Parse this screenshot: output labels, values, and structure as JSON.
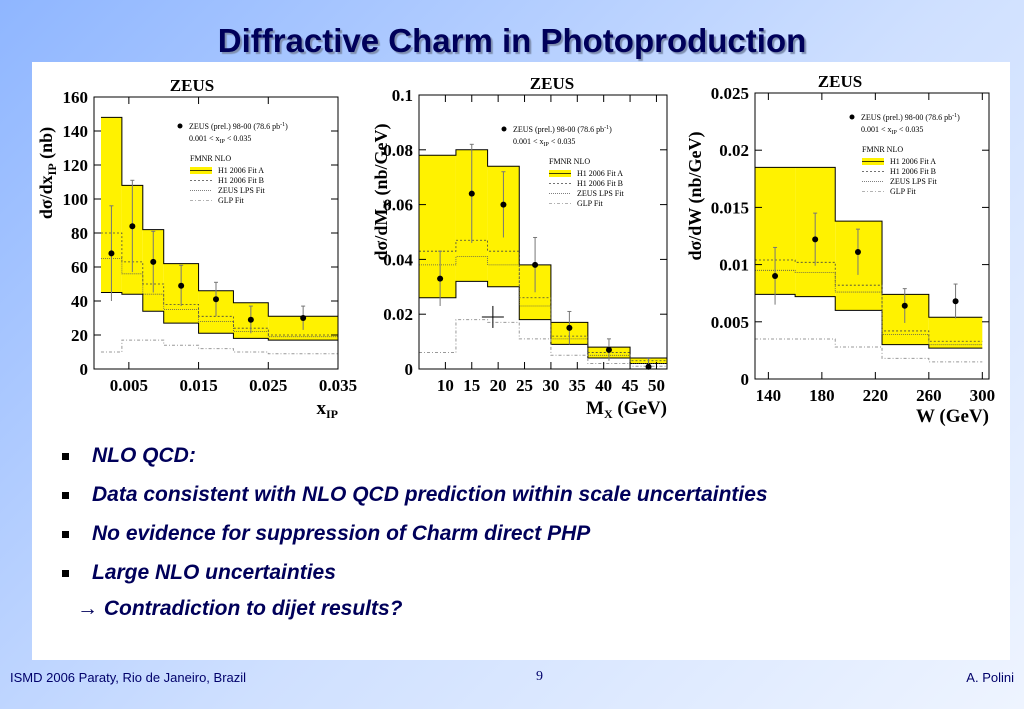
{
  "title": "Diffractive Charm in Photoproduction",
  "chart_data": [
    {
      "type": "line",
      "experiment": "ZEUS",
      "xlabel_main": "x",
      "xlabel_sub": "IP",
      "ylabel_main": "dσ/dx",
      "ylabel_sub": "IP",
      "ylabel_unit": "(nb)",
      "xlim": [
        0,
        0.035
      ],
      "ylim": [
        0,
        160
      ],
      "xticks": [
        "0.005",
        "0.015",
        "0.025",
        "0.035"
      ],
      "xtick_values": [
        0.005,
        0.015,
        0.025,
        0.035
      ],
      "yticks": [
        "0",
        "20",
        "40",
        "60",
        "80",
        "100",
        "120",
        "140",
        "160"
      ],
      "ytick_values": [
        0,
        20,
        40,
        60,
        80,
        100,
        120,
        140,
        160
      ],
      "bin_edges": [
        0.001,
        0.004,
        0.007,
        0.01,
        0.015,
        0.02,
        0.025,
        0.035
      ],
      "data_points": {
        "x": [
          0.0025,
          0.0055,
          0.0085,
          0.0125,
          0.0175,
          0.0225,
          0.03
        ],
        "y": [
          68,
          84,
          63,
          49,
          41,
          29,
          30
        ],
        "err": [
          28,
          27,
          18,
          12,
          10,
          8,
          7
        ]
      },
      "band_a_low": [
        45,
        44,
        34,
        27,
        21,
        18,
        17
      ],
      "band_a_high": [
        148,
        108,
        82,
        62,
        46,
        39,
        31
      ],
      "fit_b": [
        80,
        63,
        50,
        38,
        31,
        24,
        20
      ],
      "zeus_lps": [
        65,
        56,
        44,
        35,
        28,
        22,
        19
      ],
      "glp": [
        10,
        17,
        17,
        14,
        12,
        10,
        9
      ],
      "legend_data": "ZEUS  (prel.)  98-00  (78.6 pb",
      "legend_data_sup": "-1",
      "legend_data_close": ")",
      "legend_cut_a": "0.001 < x",
      "legend_cut_sub": "IP",
      "legend_cut_b": " < 0.035",
      "legend_header": "FMNR NLO",
      "legend_entries": [
        "H1 2006 Fit A",
        "H1 2006 Fit B",
        "ZEUS LPS Fit",
        "GLP Fit"
      ],
      "colors": {
        "band": "#fff200",
        "data": "#000000"
      }
    },
    {
      "type": "line",
      "experiment": "ZEUS",
      "xlabel_main": "M",
      "xlabel_sub": "X",
      "xlabel_unit": "(GeV)",
      "ylabel_main": "dσ/dM",
      "ylabel_sub": "X",
      "ylabel_unit": "(nb/GeV)",
      "xlim": [
        5,
        52
      ],
      "ylim": [
        0,
        0.1
      ],
      "xticks": [
        "10",
        "15",
        "20",
        "25",
        "30",
        "35",
        "40",
        "45",
        "50"
      ],
      "xtick_values": [
        10,
        15,
        20,
        25,
        30,
        35,
        40,
        45,
        50
      ],
      "yticks": [
        "0",
        "0.02",
        "0.04",
        "0.06",
        "0.08",
        "0.1"
      ],
      "ytick_values": [
        0,
        0.02,
        0.04,
        0.06,
        0.08,
        0.1
      ],
      "bin_edges": [
        5,
        12,
        18,
        24,
        30,
        37,
        45,
        52
      ],
      "data_points": {
        "x": [
          9,
          15,
          21,
          27,
          33.5,
          41,
          48.5
        ],
        "y": [
          0.033,
          0.064,
          0.06,
          0.038,
          0.015,
          0.007,
          0.0008
        ],
        "err": [
          0.01,
          0.018,
          0.012,
          0.01,
          0.006,
          0.004,
          0.003
        ]
      },
      "band_a_low": [
        0.026,
        0.032,
        0.03,
        0.018,
        0.009,
        0.004,
        0.002
      ],
      "band_a_high": [
        0.078,
        0.08,
        0.074,
        0.038,
        0.017,
        0.008,
        0.004
      ],
      "fit_b": [
        0.043,
        0.047,
        0.043,
        0.026,
        0.012,
        0.006,
        0.003
      ],
      "zeus_lps": [
        0.038,
        0.041,
        0.038,
        0.023,
        0.011,
        0.005,
        0.002
      ],
      "glp": [
        0.006,
        0.018,
        0.017,
        0.011,
        0.005,
        0.002,
        0.001
      ],
      "cross_marker": {
        "x": 19,
        "y": 0.019
      },
      "legend_data": "ZEUS  (prel.)  98-00  (78.6 pb",
      "legend_data_sup": "-1",
      "legend_data_close": ")",
      "legend_cut_a": "0.001 < x",
      "legend_cut_sub": "IP",
      "legend_cut_b": " < 0.035",
      "legend_header": "FMNR NLO",
      "legend_entries": [
        "H1 2006 Fit A",
        "H1 2006 Fit B",
        "ZEUS LPS Fit",
        "GLP Fit"
      ],
      "colors": {
        "band": "#fff200",
        "data": "#000000"
      }
    },
    {
      "type": "line",
      "experiment": "ZEUS",
      "xlabel_main": "W (GeV)",
      "ylabel_main": "dσ/dW",
      "ylabel_unit": "(nb/GeV)",
      "xlim": [
        130,
        305
      ],
      "ylim": [
        0,
        0.025
      ],
      "xticks": [
        "140",
        "180",
        "220",
        "260",
        "300"
      ],
      "xtick_values": [
        140,
        180,
        220,
        260,
        300
      ],
      "yticks": [
        "0",
        "0.005",
        "0.01",
        "0.015",
        "0.02",
        "0.025"
      ],
      "ytick_values": [
        0,
        0.005,
        0.01,
        0.015,
        0.02,
        0.025
      ],
      "bin_edges": [
        130,
        160,
        190,
        225,
        260,
        300
      ],
      "data_points": {
        "x": [
          145,
          175,
          207,
          242,
          280
        ],
        "y": [
          0.009,
          0.0122,
          0.0111,
          0.0064,
          0.0068
        ],
        "err": [
          0.0025,
          0.0023,
          0.002,
          0.0015,
          0.0015
        ]
      },
      "band_a_low": [
        0.0074,
        0.0072,
        0.006,
        0.003,
        0.0027
      ],
      "band_a_high": [
        0.0185,
        0.0185,
        0.0138,
        0.0074,
        0.0054
      ],
      "fit_b": [
        0.0104,
        0.0102,
        0.0082,
        0.0042,
        0.0033
      ],
      "zeus_lps": [
        0.0095,
        0.0093,
        0.0076,
        0.0039,
        0.003
      ],
      "glp": [
        0.0035,
        0.0035,
        0.0028,
        0.0018,
        0.0015
      ],
      "legend_data": "ZEUS  (prel.)  98-00  (78.6 pb",
      "legend_data_sup": "-1",
      "legend_data_close": ")",
      "legend_cut_a": "0.001 < x",
      "legend_cut_sub": "IP",
      "legend_cut_b": " < 0.035",
      "legend_header": "FMNR NLO",
      "legend_entries": [
        "H1 2006 Fit A",
        "H1 2006 Fit B",
        "ZEUS LPS Fit",
        "GLP Fit"
      ],
      "colors": {
        "band": "#fff200",
        "data": "#000000"
      }
    }
  ],
  "bullets": [
    "NLO QCD:",
    "Data consistent with NLO QCD prediction within scale uncertainties",
    "No evidence for suppression of Charm direct PHP",
    "Large NLO uncertainties"
  ],
  "conclusion": "→ Contradiction to dijet results?",
  "footer": {
    "left": "ISMD 2006 Paraty, Rio de Janeiro, Brazil",
    "page": "9",
    "right": "A. Polini"
  },
  "colors": {
    "title": "#00005a",
    "text": "#00005a",
    "band": "#fff200"
  }
}
